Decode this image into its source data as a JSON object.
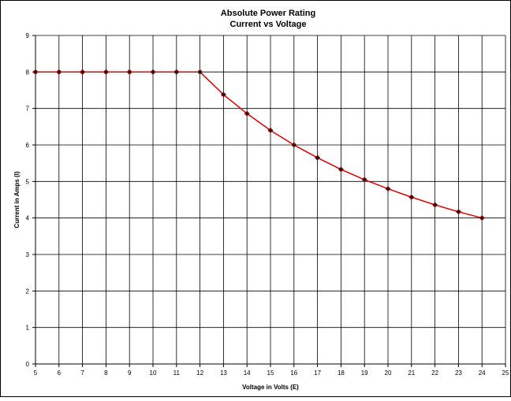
{
  "chart_data": {
    "type": "line",
    "title": "Absolute Power Rating",
    "subtitle": "Current vs Voltage",
    "xlabel": "Voltage in Volts (E)",
    "ylabel": "Current in Amps (I)",
    "xlim": [
      5,
      25
    ],
    "ylim": [
      0,
      9
    ],
    "xticks": [
      "5",
      "6",
      "7",
      "8",
      "9",
      "10",
      "11",
      "12",
      "13",
      "14",
      "15",
      "16",
      "17",
      "18",
      "19",
      "20",
      "21",
      "22",
      "23",
      "24",
      "25"
    ],
    "yticks": [
      "0",
      "1",
      "2",
      "3",
      "4",
      "5",
      "6",
      "7",
      "8",
      "9"
    ],
    "grid": true,
    "legend": "none",
    "series": [
      {
        "color": "#e00000",
        "marker_color": "#1a1a1a",
        "x": [
          5,
          6,
          7,
          8,
          9,
          10,
          11,
          12,
          13,
          14,
          15,
          16,
          17,
          18,
          19,
          20,
          21,
          22,
          23,
          24
        ],
        "y": [
          8,
          8,
          8,
          8,
          8,
          8,
          8,
          8,
          7.38,
          6.86,
          6.4,
          6.0,
          5.65,
          5.33,
          5.05,
          4.8,
          4.57,
          4.36,
          4.17,
          4.0
        ]
      }
    ]
  }
}
